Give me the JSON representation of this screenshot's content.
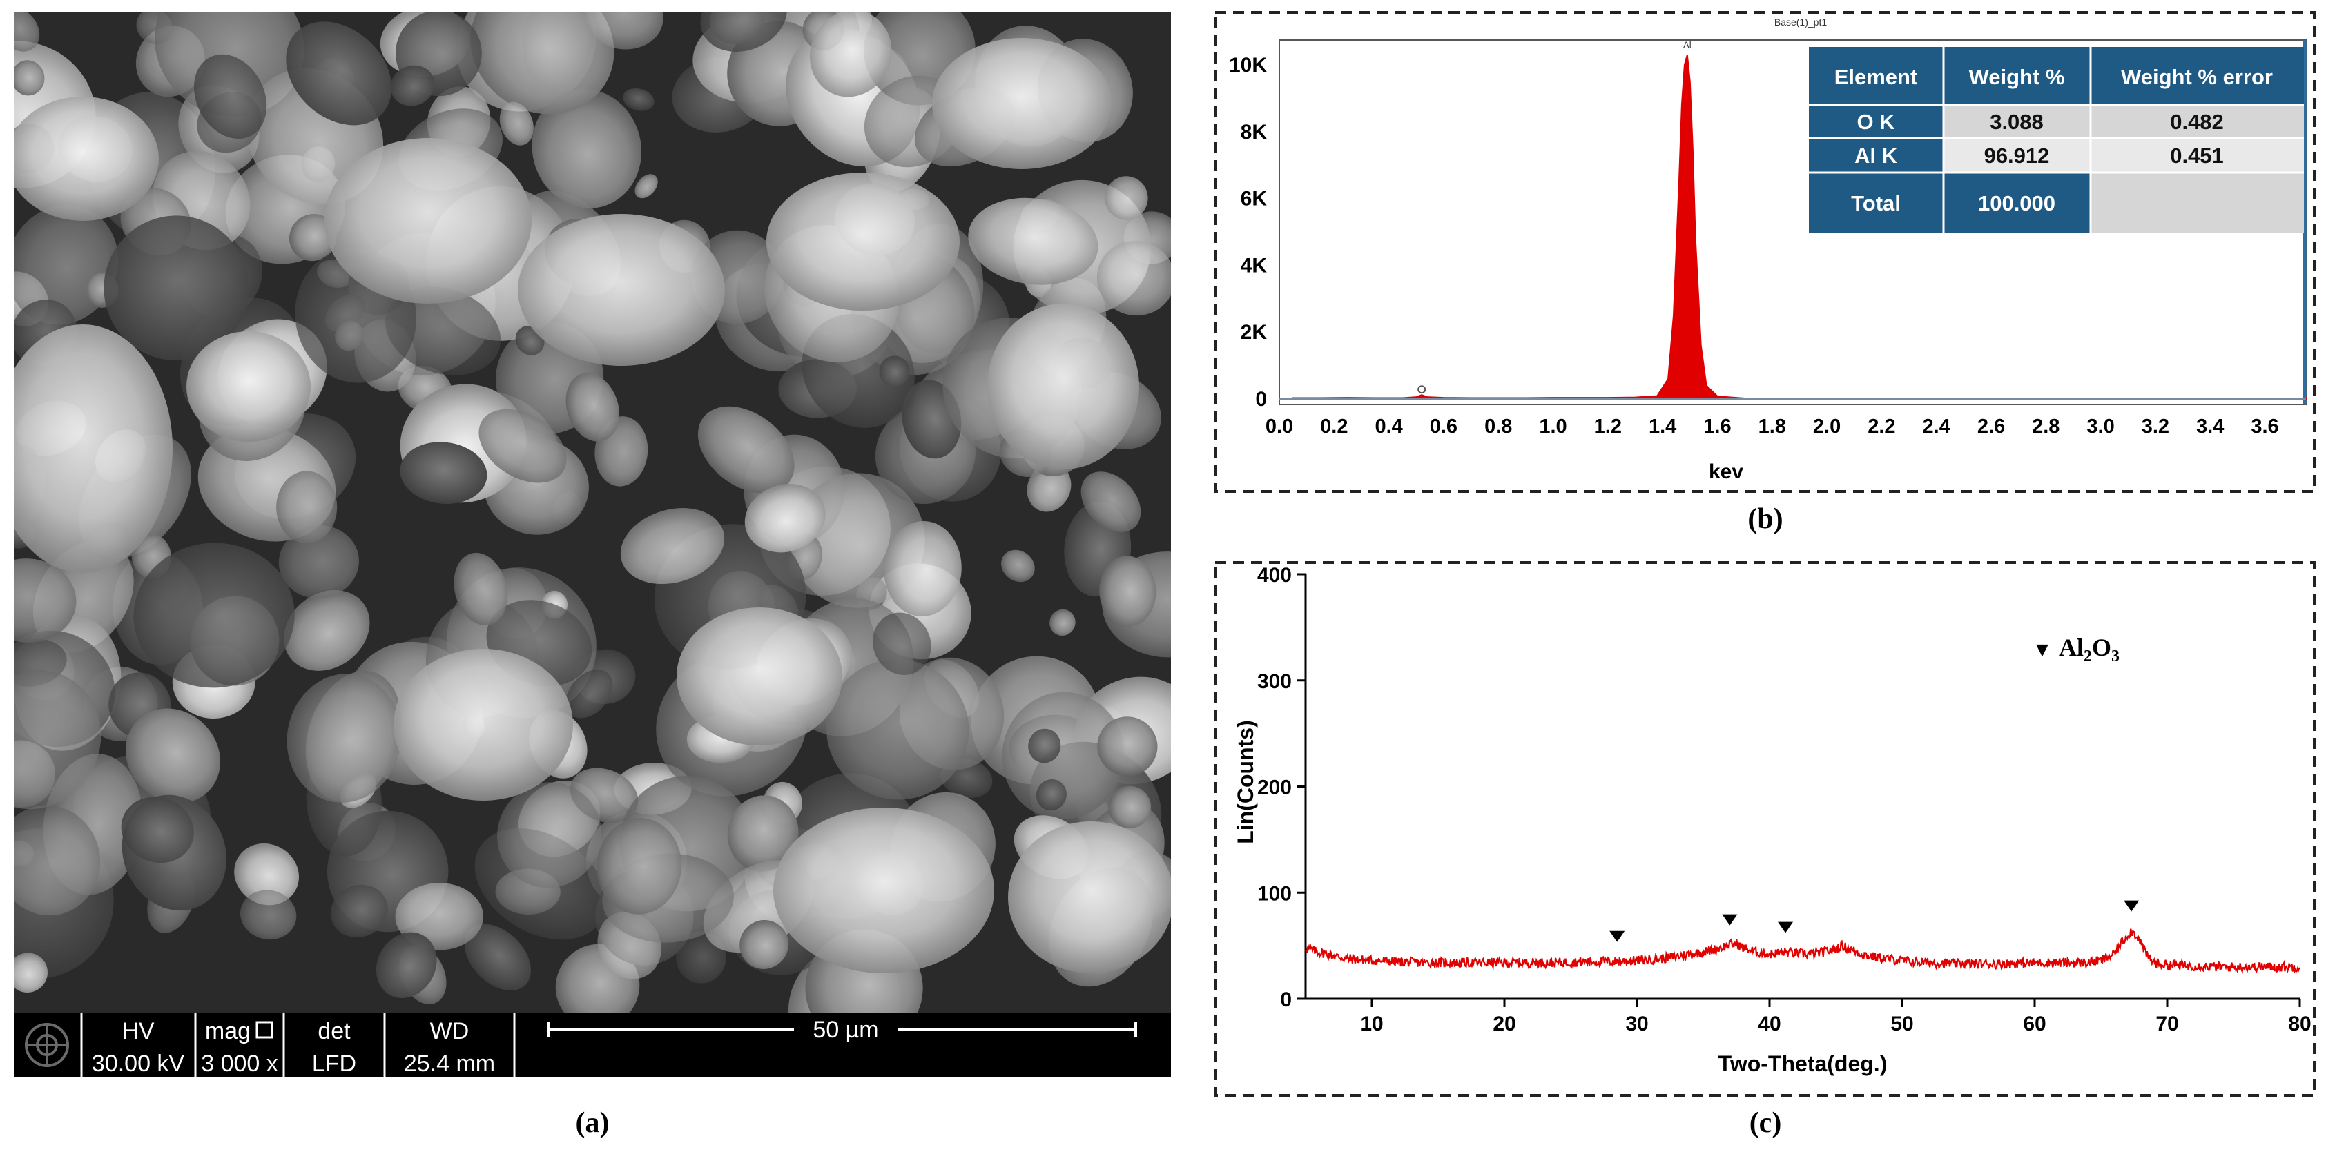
{
  "sem": {
    "labels": {
      "hv": "HV",
      "mag": "mag",
      "det": "det",
      "wd": "WD",
      "hv_value": "30.00 kV",
      "mag_value": "3 000 x",
      "det_value": "LFD",
      "wd_value": "25.4 mm",
      "scale_bar": "50 µm"
    },
    "panel_label": "(a)"
  },
  "eds": {
    "panel_label": "(b)",
    "plot_title": "Base(1)_pt1",
    "table": {
      "headers": [
        "Element",
        "Weight %",
        "Weight % error"
      ],
      "rows": [
        [
          "O K",
          "3.088",
          "0.482"
        ],
        [
          "Al K",
          "96.912",
          "0.451"
        ],
        [
          "Total",
          "100.000",
          ""
        ]
      ]
    }
  },
  "xrd": {
    "panel_label": "(c)",
    "legend_symbol": "▼",
    "legend_label": "Al2O3"
  },
  "chart_data": [
    {
      "type": "line",
      "title": "Base(1)_pt1",
      "xlabel": "kev",
      "ylabel": "",
      "xlim": [
        0.0,
        3.75
      ],
      "ylim": [
        0,
        10500
      ],
      "xticks": [
        "0.0",
        "0.2",
        "0.4",
        "0.6",
        "0.8",
        "1.0",
        "1.2",
        "1.4",
        "1.6",
        "1.8",
        "2.0",
        "2.2",
        "2.4",
        "2.6",
        "2.8",
        "3.0",
        "3.2",
        "3.4",
        "3.6"
      ],
      "yticks": [
        "0",
        "2K",
        "4K",
        "6K",
        "8K",
        "10K"
      ],
      "peak_labels": [
        {
          "label": "O",
          "x": 0.52,
          "y": 120
        },
        {
          "label": "Al",
          "x": 1.49,
          "y": 10300
        }
      ],
      "series": [
        {
          "color": "#e00000",
          "x": [
            0.05,
            0.15,
            0.25,
            0.35,
            0.45,
            0.5,
            0.52,
            0.54,
            0.6,
            0.7,
            0.8,
            0.9,
            1.0,
            1.1,
            1.2,
            1.3,
            1.38,
            1.42,
            1.44,
            1.46,
            1.47,
            1.48,
            1.49,
            1.5,
            1.51,
            1.52,
            1.54,
            1.56,
            1.6,
            1.7,
            1.8,
            2.0,
            2.5,
            3.0,
            3.5,
            3.75
          ],
          "y": [
            30,
            30,
            40,
            30,
            30,
            60,
            120,
            60,
            40,
            30,
            30,
            30,
            40,
            40,
            40,
            50,
            90,
            600,
            2500,
            6500,
            8800,
            10000,
            10300,
            9500,
            7500,
            4800,
            1600,
            400,
            80,
            20,
            10,
            5,
            5,
            5,
            5,
            5
          ]
        }
      ]
    },
    {
      "type": "line",
      "title": "",
      "xlabel": "Two-Theta(deg.)",
      "ylabel": "Lin(Counts)",
      "xlim": [
        5,
        80
      ],
      "ylim": [
        0,
        400
      ],
      "xticks": [
        "10",
        "20",
        "30",
        "40",
        "50",
        "60",
        "70",
        "80"
      ],
      "yticks": [
        "0",
        "100",
        "200",
        "300",
        "400"
      ],
      "markers": [
        28.5,
        37.0,
        41.2,
        67.3
      ],
      "series": [
        {
          "name": "",
          "color": "#e00000",
          "x": [
            5,
            6,
            7,
            8,
            9,
            10,
            12,
            14,
            16,
            18,
            20,
            22,
            24,
            26,
            28,
            30,
            32,
            33,
            34,
            35,
            36,
            37,
            37.5,
            38,
            39,
            40,
            41,
            42,
            43,
            44,
            45,
            45.5,
            46,
            47,
            48,
            50,
            52,
            54,
            56,
            58,
            60,
            62,
            64,
            65,
            66,
            66.5,
            67,
            67.3,
            67.8,
            68.5,
            69,
            70,
            72,
            74,
            76,
            78,
            80
          ],
          "y": [
            48,
            44,
            41,
            38,
            37,
            36,
            35,
            34,
            34,
            34,
            34,
            34,
            34,
            35,
            35,
            36,
            38,
            40,
            42,
            44,
            47,
            51,
            52,
            48,
            44,
            42,
            44,
            43,
            42,
            44,
            47,
            50,
            47,
            42,
            39,
            36,
            34,
            33,
            33,
            33,
            34,
            34,
            34,
            36,
            42,
            52,
            60,
            64,
            58,
            40,
            34,
            32,
            31,
            30,
            30,
            30,
            30
          ]
        }
      ]
    }
  ]
}
